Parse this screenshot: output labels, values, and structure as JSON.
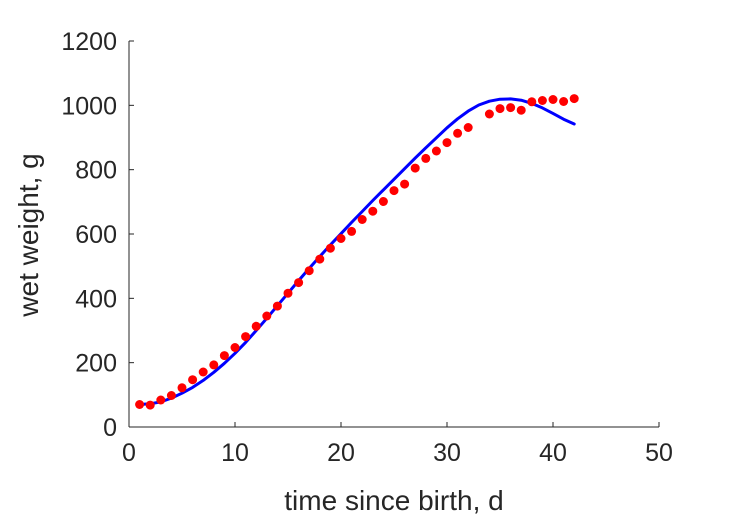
{
  "chart_data": {
    "type": "scatter",
    "title": "",
    "xlabel": "time since birth, d",
    "ylabel": "wet weight, g",
    "xlim": [
      0,
      50
    ],
    "ylim": [
      0,
      1200
    ],
    "xticks": [
      0,
      10,
      20,
      30,
      40,
      50
    ],
    "yticks": [
      0,
      200,
      400,
      600,
      800,
      1000,
      1200
    ],
    "grid": false,
    "legend": "none",
    "series": [
      {
        "kind": "scatter",
        "color": "#ff0000",
        "x": [
          1,
          2,
          3,
          4,
          5,
          6,
          7,
          8,
          9,
          10,
          11,
          12,
          13,
          14,
          15,
          16,
          17,
          18,
          19,
          20,
          21,
          22,
          23,
          24,
          25,
          26,
          27,
          28,
          29,
          30,
          31,
          32,
          34,
          35,
          36,
          37,
          38,
          39,
          40,
          41,
          42
        ],
        "y": [
          70,
          68,
          84,
          98,
          122,
          147,
          171,
          193,
          222,
          247,
          281,
          313,
          345,
          376,
          416,
          449,
          486,
          522,
          556,
          586,
          608,
          645,
          671,
          701,
          735,
          755,
          805,
          835,
          858,
          884,
          913,
          931,
          973,
          990,
          993,
          985,
          1011,
          1015,
          1018,
          1012,
          1021
        ]
      },
      {
        "kind": "line",
        "color": "#0000ff",
        "x": [
          1,
          2,
          3,
          4,
          5,
          6,
          7,
          8,
          9,
          10,
          11,
          12,
          13,
          14,
          15,
          16,
          17,
          18,
          19,
          20,
          21,
          22,
          23,
          24,
          25,
          26,
          27,
          28,
          29,
          30,
          31,
          32,
          33,
          34,
          35,
          36,
          37,
          38,
          39,
          40,
          41,
          42
        ],
        "y": [
          70,
          72,
          78,
          90,
          105,
          123,
          145,
          170,
          198,
          229,
          263,
          300,
          338,
          377,
          416,
          455,
          493,
          530,
          566,
          601,
          636,
          670,
          704,
          737,
          770,
          803,
          836,
          868,
          899,
          930,
          958,
          982,
          1001,
          1013,
          1019,
          1020,
          1016,
          1006,
          992,
          975,
          957,
          942
        ]
      }
    ]
  }
}
